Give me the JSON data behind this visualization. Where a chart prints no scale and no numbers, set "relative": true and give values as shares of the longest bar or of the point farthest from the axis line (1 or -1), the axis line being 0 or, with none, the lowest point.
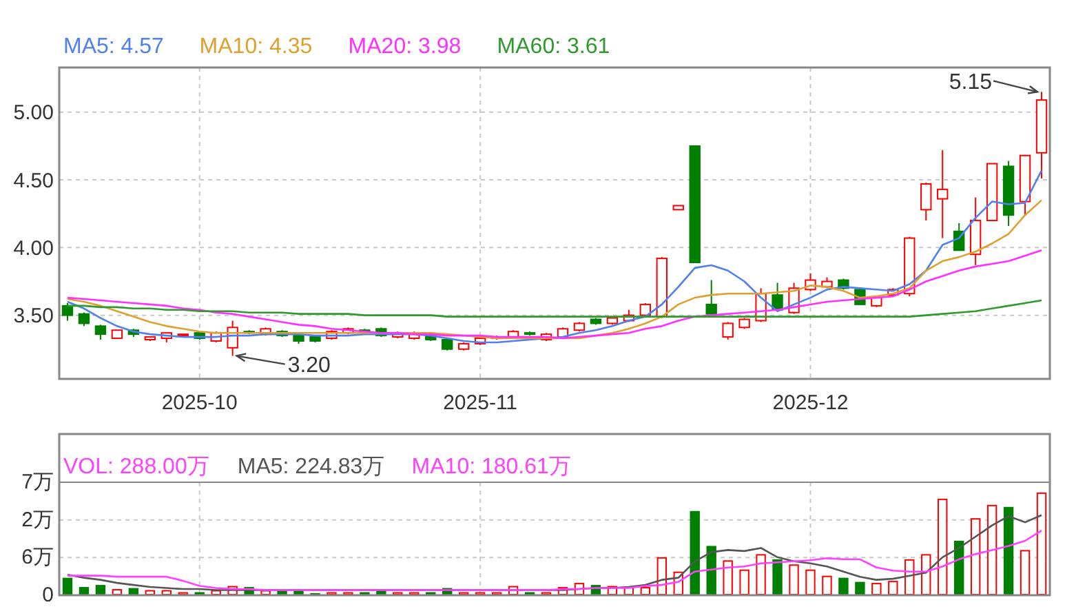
{
  "chart_data": [
    {
      "type": "candlestick",
      "categories": [
        null,
        null,
        null,
        null,
        null,
        null,
        null,
        null,
        "2025-10",
        null,
        null,
        null,
        null,
        null,
        null,
        null,
        null,
        null,
        null,
        null,
        null,
        null,
        null,
        null,
        null,
        "2025-11",
        null,
        null,
        null,
        null,
        null,
        null,
        null,
        null,
        null,
        null,
        null,
        null,
        null,
        null,
        null,
        null,
        null,
        null,
        null,
        "2025-12",
        null,
        null,
        null,
        null,
        null,
        null,
        null,
        null,
        null,
        null,
        null,
        null,
        null,
        null
      ],
      "ohlc": [
        [
          3.57,
          3.59,
          3.46,
          3.5
        ],
        [
          3.51,
          3.52,
          3.42,
          3.44
        ],
        [
          3.42,
          3.43,
          3.32,
          3.36
        ],
        [
          3.33,
          3.39,
          3.33,
          3.39
        ],
        [
          3.39,
          3.4,
          3.34,
          3.36
        ],
        [
          3.32,
          3.34,
          3.31,
          3.34
        ],
        [
          3.33,
          3.37,
          3.3,
          3.37
        ],
        [
          3.35,
          3.36,
          3.34,
          3.36
        ],
        [
          3.37,
          3.38,
          3.32,
          3.33
        ],
        [
          3.31,
          3.38,
          3.3,
          3.37
        ],
        [
          3.26,
          3.46,
          3.2,
          3.41
        ],
        [
          3.38,
          3.39,
          3.36,
          3.37
        ],
        [
          3.36,
          3.41,
          3.35,
          3.4
        ],
        [
          3.38,
          3.39,
          3.34,
          3.35
        ],
        [
          3.35,
          3.36,
          3.29,
          3.31
        ],
        [
          3.34,
          3.35,
          3.3,
          3.31
        ],
        [
          3.33,
          3.39,
          3.32,
          3.38
        ],
        [
          3.37,
          3.41,
          3.36,
          3.4
        ],
        [
          3.39,
          3.4,
          3.37,
          3.38
        ],
        [
          3.4,
          3.41,
          3.34,
          3.35
        ],
        [
          3.34,
          3.38,
          3.33,
          3.37
        ],
        [
          3.33,
          3.38,
          3.32,
          3.37
        ],
        [
          3.35,
          3.36,
          3.31,
          3.32
        ],
        [
          3.32,
          3.33,
          3.24,
          3.25
        ],
        [
          3.25,
          3.3,
          3.24,
          3.29
        ],
        [
          3.29,
          3.34,
          3.28,
          3.33
        ],
        [
          3.33,
          3.35,
          3.32,
          3.34
        ],
        [
          3.34,
          3.39,
          3.33,
          3.38
        ],
        [
          3.37,
          3.38,
          3.35,
          3.36
        ],
        [
          3.32,
          3.37,
          3.31,
          3.36
        ],
        [
          3.34,
          3.41,
          3.33,
          3.4
        ],
        [
          3.39,
          3.45,
          3.38,
          3.44
        ],
        [
          3.47,
          3.48,
          3.43,
          3.44
        ],
        [
          3.44,
          3.49,
          3.43,
          3.48
        ],
        [
          3.46,
          3.54,
          3.45,
          3.5
        ],
        [
          3.5,
          3.59,
          3.49,
          3.58
        ],
        [
          3.49,
          3.93,
          3.48,
          3.92
        ],
        [
          4.28,
          4.31,
          4.28,
          4.31
        ],
        [
          4.75,
          4.75,
          3.89,
          3.89
        ],
        [
          3.58,
          3.76,
          3.51,
          3.51
        ],
        [
          3.34,
          3.45,
          3.32,
          3.44
        ],
        [
          3.41,
          3.48,
          3.4,
          3.47
        ],
        [
          3.46,
          3.7,
          3.45,
          3.66
        ],
        [
          3.65,
          3.74,
          3.53,
          3.54
        ],
        [
          3.52,
          3.74,
          3.51,
          3.7
        ],
        [
          3.69,
          3.81,
          3.68,
          3.76
        ],
        [
          3.71,
          3.78,
          3.7,
          3.75
        ],
        [
          3.76,
          3.77,
          3.69,
          3.7
        ],
        [
          3.69,
          3.7,
          3.58,
          3.58
        ],
        [
          3.57,
          3.64,
          3.56,
          3.63
        ],
        [
          3.65,
          3.7,
          3.64,
          3.69
        ],
        [
          3.66,
          4.08,
          3.64,
          4.07
        ],
        [
          4.28,
          4.48,
          4.2,
          4.47
        ],
        [
          4.36,
          4.72,
          4.07,
          4.43
        ],
        [
          4.12,
          4.18,
          3.98,
          3.98
        ],
        [
          3.95,
          4.37,
          3.87,
          4.2
        ],
        [
          4.2,
          4.62,
          4.2,
          4.62
        ],
        [
          4.6,
          4.64,
          4.16,
          4.24
        ],
        [
          4.34,
          4.68,
          4.24,
          4.68
        ],
        [
          4.7,
          5.15,
          4.51,
          5.09
        ]
      ],
      "colors": [
        "#008000",
        "#008000",
        "#008000",
        "#ff0000",
        "#008000",
        "#ff0000",
        "#ff0000",
        "#ff0000",
        "#008000",
        "#ff0000",
        "#ff0000",
        "#008000",
        "#ff0000",
        "#008000",
        "#008000",
        "#008000",
        "#ff0000",
        "#ff0000",
        "#008000",
        "#008000",
        "#ff0000",
        "#ff0000",
        "#008000",
        "#008000",
        "#ff0000",
        "#ff0000",
        "#ff0000",
        "#ff0000",
        "#008000",
        "#ff0000",
        "#ff0000",
        "#ff0000",
        "#008000",
        "#ff0000",
        "#ff0000",
        "#ff0000",
        "#ff0000",
        "#ff0000",
        "#008000",
        "#008000",
        "#ff0000",
        "#ff0000",
        "#ff0000",
        "#008000",
        "#ff0000",
        "#ff0000",
        "#ff0000",
        "#008000",
        "#008000",
        "#ff0000",
        "#ff0000",
        "#ff0000",
        "#ff0000",
        "#ff0000",
        "#008000",
        "#ff0000",
        "#ff0000",
        "#008000",
        "#ff0000",
        "#ff0000"
      ],
      "series": [
        {
          "type": "line",
          "name": "MA5: 4.57",
          "color": "#4f7ff0",
          "values": [
            3.6,
            3.55,
            3.48,
            3.42,
            3.38,
            3.36,
            3.35,
            3.34,
            3.34,
            3.34,
            3.35,
            3.35,
            3.36,
            3.36,
            3.36,
            3.35,
            3.35,
            3.35,
            3.36,
            3.36,
            3.36,
            3.36,
            3.35,
            3.33,
            3.31,
            3.3,
            3.3,
            3.31,
            3.32,
            3.33,
            3.34,
            3.37,
            3.39,
            3.42,
            3.46,
            3.49,
            3.58,
            3.71,
            3.85,
            3.87,
            3.83,
            3.75,
            3.63,
            3.53,
            3.58,
            3.63,
            3.69,
            3.71,
            3.7,
            3.69,
            3.68,
            3.73,
            3.83,
            4.02,
            4.07,
            4.22,
            4.34,
            4.32,
            4.33,
            4.57
          ]
        },
        {
          "type": "line",
          "name": "MA10: 4.35",
          "color": "#e0a030",
          "values": [
            3.62,
            3.6,
            3.57,
            3.53,
            3.49,
            3.45,
            3.42,
            3.4,
            3.38,
            3.37,
            3.37,
            3.37,
            3.37,
            3.37,
            3.37,
            3.37,
            3.37,
            3.37,
            3.37,
            3.37,
            3.37,
            3.37,
            3.37,
            3.36,
            3.35,
            3.34,
            3.33,
            3.33,
            3.33,
            3.33,
            3.33,
            3.33,
            3.35,
            3.37,
            3.4,
            3.44,
            3.49,
            3.58,
            3.63,
            3.65,
            3.66,
            3.66,
            3.66,
            3.67,
            3.68,
            3.72,
            3.71,
            3.68,
            3.63,
            3.64,
            3.66,
            3.7,
            3.83,
            3.9,
            3.93,
            3.97,
            4.03,
            4.1,
            4.24,
            4.35
          ]
        },
        {
          "type": "line",
          "name": "MA20: 3.98",
          "color": "#ff30ff",
          "values": [
            3.63,
            3.62,
            3.61,
            3.6,
            3.59,
            3.58,
            3.57,
            3.55,
            3.54,
            3.52,
            3.51,
            3.49,
            3.47,
            3.45,
            3.43,
            3.42,
            3.4,
            3.39,
            3.38,
            3.37,
            3.37,
            3.36,
            3.36,
            3.35,
            3.35,
            3.35,
            3.34,
            3.34,
            3.34,
            3.34,
            3.33,
            3.34,
            3.35,
            3.36,
            3.37,
            3.4,
            3.42,
            3.46,
            3.49,
            3.5,
            3.51,
            3.52,
            3.53,
            3.54,
            3.56,
            3.58,
            3.6,
            3.61,
            3.62,
            3.63,
            3.64,
            3.69,
            3.75,
            3.79,
            3.83,
            3.86,
            3.88,
            3.9,
            3.94,
            3.98
          ]
        },
        {
          "type": "line",
          "name": "MA60: 3.61",
          "color": "#2e9a2e",
          "values": [
            3.57,
            3.57,
            3.56,
            3.56,
            3.55,
            3.55,
            3.54,
            3.54,
            3.53,
            3.53,
            3.53,
            3.52,
            3.52,
            3.52,
            3.51,
            3.51,
            3.51,
            3.51,
            3.5,
            3.5,
            3.5,
            3.5,
            3.5,
            3.49,
            3.49,
            3.49,
            3.49,
            3.49,
            3.49,
            3.49,
            3.49,
            3.49,
            3.49,
            3.49,
            3.49,
            3.49,
            3.49,
            3.49,
            3.49,
            3.49,
            3.49,
            3.49,
            3.49,
            3.49,
            3.49,
            3.49,
            3.49,
            3.49,
            3.49,
            3.49,
            3.49,
            3.49,
            3.5,
            3.51,
            3.52,
            3.53,
            3.55,
            3.57,
            3.59,
            3.61
          ]
        }
      ],
      "ylim": [
        3.03,
        5.33
      ],
      "yticks": [
        {
          "value": 3.5,
          "label": "3.50"
        },
        {
          "value": 4,
          "label": "4.00"
        },
        {
          "value": 4.5,
          "label": "4.50"
        },
        {
          "value": 5,
          "label": "5.00"
        }
      ],
      "grid": true,
      "legend": "top left",
      "annotations": [
        "5.15",
        "3.20"
      ]
    },
    {
      "type": "bar",
      "categories": [
        null,
        null,
        null,
        null,
        null,
        null,
        null,
        null,
        "2025-10",
        null,
        null,
        null,
        null,
        null,
        null,
        null,
        null,
        null,
        null,
        null,
        null,
        null,
        null,
        null,
        null,
        "2025-11",
        null,
        null,
        null,
        null,
        null,
        null,
        null,
        null,
        null,
        null,
        null,
        null,
        null,
        null,
        null,
        null,
        null,
        null,
        null,
        "2025-12",
        null,
        null,
        null,
        null,
        null,
        null,
        null,
        null,
        null,
        null,
        null,
        null,
        null,
        null
      ],
      "tick_labels": "y",
      "relative": true,
      "series": [
        {
          "type": "bar",
          "name": "VOL: 288.00万",
          "color": "#ff40ff",
          "colors": [
            "#008000",
            "#008000",
            "#008000",
            "#ff0000",
            "#008000",
            "#ff0000",
            "#ff0000",
            "#ff0000",
            "#008000",
            "#ff0000",
            "#ff0000",
            "#008000",
            "#ff0000",
            "#008000",
            "#008000",
            "#008000",
            "#ff0000",
            "#ff0000",
            "#008000",
            "#008000",
            "#ff0000",
            "#ff0000",
            "#008000",
            "#008000",
            "#ff0000",
            "#ff0000",
            "#ff0000",
            "#ff0000",
            "#008000",
            "#ff0000",
            "#ff0000",
            "#ff0000",
            "#008000",
            "#ff0000",
            "#ff0000",
            "#ff0000",
            "#ff0000",
            "#ff0000",
            "#008000",
            "#008000",
            "#ff0000",
            "#ff0000",
            "#ff0000",
            "#008000",
            "#ff0000",
            "#ff0000",
            "#ff0000",
            "#008000",
            "#008000",
            "#ff0000",
            "#ff0000",
            "#ff0000",
            "#ff0000",
            "#ff0000",
            "#008000",
            "#ff0000",
            "#ff0000",
            "#008000",
            "#ff0000",
            "#ff0000"
          ],
          "values": [
            0.17,
            0.08,
            0.1,
            0.06,
            0.07,
            0.05,
            0.05,
            0.03,
            0.03,
            0.05,
            0.09,
            0.08,
            0.05,
            0.05,
            0.05,
            0.02,
            0.03,
            0.03,
            0.03,
            0.05,
            0.03,
            0.03,
            0.03,
            0.07,
            0.03,
            0.03,
            0.03,
            0.09,
            0.03,
            0.03,
            0.08,
            0.12,
            0.1,
            0.09,
            0.08,
            0.08,
            0.37,
            0.23,
            0.82,
            0.48,
            0.34,
            0.25,
            0.4,
            0.35,
            0.3,
            0.25,
            0.19,
            0.17,
            0.13,
            0.12,
            0.14,
            0.35,
            0.4,
            0.94,
            0.53,
            0.75,
            0.88,
            0.86,
            0.44,
            1
          ]
        },
        {
          "type": "line",
          "name": "MA5: 224.83万",
          "color": "#555555",
          "values": [
            0.2,
            0.17,
            0.15,
            0.12,
            0.1,
            0.08,
            0.07,
            0.06,
            0.06,
            0.05,
            0.05,
            0.05,
            0.05,
            0.05,
            0.05,
            0.05,
            0.05,
            0.05,
            0.05,
            0.05,
            0.05,
            0.05,
            0.05,
            0.05,
            0.05,
            0.05,
            0.05,
            0.05,
            0.05,
            0.05,
            0.05,
            0.06,
            0.07,
            0.07,
            0.08,
            0.1,
            0.15,
            0.17,
            0.33,
            0.42,
            0.44,
            0.43,
            0.46,
            0.37,
            0.33,
            0.31,
            0.28,
            0.23,
            0.18,
            0.15,
            0.16,
            0.19,
            0.22,
            0.37,
            0.46,
            0.57,
            0.68,
            0.77,
            0.71,
            0.78
          ]
        },
        {
          "type": "line",
          "name": "MA10: 180.61万",
          "color": "#ff40ff",
          "values": [
            0.19,
            0.19,
            0.19,
            0.18,
            0.18,
            0.18,
            0.18,
            0.14,
            0.09,
            0.07,
            0.06,
            0.06,
            0.05,
            0.05,
            0.05,
            0.05,
            0.05,
            0.05,
            0.05,
            0.05,
            0.05,
            0.05,
            0.05,
            0.05,
            0.05,
            0.05,
            0.05,
            0.05,
            0.05,
            0.05,
            0.06,
            0.06,
            0.07,
            0.07,
            0.07,
            0.09,
            0.1,
            0.13,
            0.23,
            0.25,
            0.27,
            0.28,
            0.31,
            0.32,
            0.33,
            0.34,
            0.36,
            0.35,
            0.35,
            0.27,
            0.24,
            0.23,
            0.23,
            0.28,
            0.35,
            0.4,
            0.44,
            0.48,
            0.53,
            0.63
          ]
        }
      ],
      "annotations": [
        "7万",
        "2万",
        "6万",
        "0"
      ],
      "grid": true,
      "legend": "top left"
    }
  ]
}
